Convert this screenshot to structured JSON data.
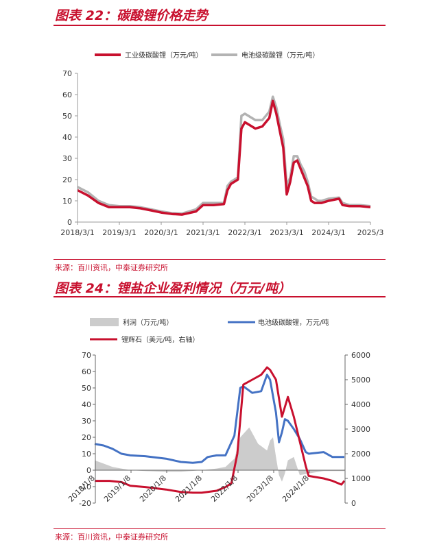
{
  "figures": [
    {
      "title": "图表 22：碳酸锂价格走势",
      "source": "来源：百川资讯，中泰证券研究所"
    },
    {
      "title": "图表 24：锂盐企业盈利情况（万元/吨）",
      "source": "来源：百川资讯，中泰证券研究所"
    }
  ],
  "colors": {
    "accent": "#c8102e",
    "series_red": "#c8102e",
    "series_gray": "#b3b3b3",
    "series_blue": "#4472c4",
    "area_gray": "#cccccc"
  },
  "chart_data": [
    {
      "type": "line",
      "title": "",
      "xlabel": "",
      "ylabel": "",
      "ylim": [
        0,
        70
      ],
      "yticks": [
        0,
        10,
        20,
        30,
        40,
        50,
        60,
        70
      ],
      "xlim": [
        "2018-03-01",
        "2025-03-01"
      ],
      "xticks": [
        "2018/3/1",
        "2019/3/1",
        "2020/3/1",
        "2021/3/1",
        "2022/3/1",
        "2023/3/1",
        "2024/3/1",
        "2025/3"
      ],
      "legend_position": "top",
      "series": [
        {
          "name": "工业级碳酸锂（万元/吨）",
          "color": "#c8102e",
          "x": [
            "2018-03",
            "2018-06",
            "2018-09",
            "2018-12",
            "2019-03",
            "2019-06",
            "2019-09",
            "2019-12",
            "2020-03",
            "2020-06",
            "2020-09",
            "2021-01",
            "2021-03",
            "2021-06",
            "2021-09",
            "2021-10",
            "2021-11",
            "2022-01",
            "2022-02",
            "2022-03",
            "2022-06",
            "2022-08",
            "2022-10",
            "2022-11",
            "2022-12",
            "2023-01",
            "2023-02",
            "2023-03",
            "2023-04",
            "2023-05",
            "2023-06",
            "2023-07",
            "2023-08",
            "2023-09",
            "2023-10",
            "2023-11",
            "2023-12",
            "2024-01",
            "2024-03",
            "2024-06",
            "2024-07",
            "2024-09",
            "2024-12",
            "2025-03"
          ],
          "y": [
            15,
            12.5,
            9,
            7,
            7,
            7,
            6.5,
            5.5,
            4.5,
            3.8,
            3.5,
            5,
            8,
            8,
            8.5,
            15,
            18,
            20,
            44,
            47,
            44,
            45,
            49,
            57,
            51,
            43,
            35,
            13,
            19,
            28,
            29,
            25,
            21,
            17,
            10,
            9,
            9,
            9,
            10,
            11,
            8,
            7.5,
            7.5,
            7
          ]
        },
        {
          "name": "电池级碳酸锂（万元/吨）",
          "color": "#b3b3b3",
          "x": [
            "2018-03",
            "2018-06",
            "2018-09",
            "2018-12",
            "2019-03",
            "2019-06",
            "2019-09",
            "2019-12",
            "2020-03",
            "2020-06",
            "2020-09",
            "2021-01",
            "2021-03",
            "2021-06",
            "2021-09",
            "2021-10",
            "2021-11",
            "2022-01",
            "2022-02",
            "2022-03",
            "2022-06",
            "2022-08",
            "2022-10",
            "2022-11",
            "2022-12",
            "2023-01",
            "2023-02",
            "2023-03",
            "2023-04",
            "2023-05",
            "2023-06",
            "2023-07",
            "2023-08",
            "2023-09",
            "2023-10",
            "2023-11",
            "2023-12",
            "2024-01",
            "2024-03",
            "2024-06",
            "2024-07",
            "2024-09",
            "2024-12",
            "2025-03"
          ],
          "y": [
            16.5,
            14,
            10,
            8,
            7.5,
            7.5,
            7,
            6,
            5,
            4.2,
            4,
            6,
            9,
            9,
            9,
            17,
            19,
            21,
            50,
            51,
            48,
            48,
            52,
            59,
            54,
            46,
            39,
            17,
            21,
            31,
            31,
            27,
            24,
            19,
            12,
            11,
            10,
            10,
            11,
            11.5,
            9,
            8,
            8,
            7.5
          ]
        }
      ]
    },
    {
      "type": "area+line",
      "title": "",
      "xlabel": "",
      "ylabel": "",
      "ylim": [
        -20,
        70
      ],
      "yticks": [
        -20,
        -10,
        0,
        10,
        20,
        30,
        40,
        50,
        60,
        70
      ],
      "y2lim": [
        0,
        6000
      ],
      "y2ticks": [
        0,
        1000,
        2000,
        3000,
        4000,
        5000,
        6000
      ],
      "xlim": [
        "2018-01-08",
        "2025-01-08"
      ],
      "xticks": [
        "2018/1/8",
        "2019/1/8",
        "2020/1/8",
        "2021/1/8",
        "2022/1/8",
        "2023/1/8",
        "2024/1/8"
      ],
      "legend_position": "top",
      "series": [
        {
          "name": "利润（万元/吨）",
          "kind": "area",
          "axis": "left",
          "color": "#cccccc",
          "x": [
            "2018-01",
            "2018-04",
            "2018-07",
            "2018-10",
            "2019-01",
            "2019-06",
            "2020-01",
            "2020-06",
            "2021-01",
            "2021-06",
            "2021-09",
            "2021-12",
            "2022-02",
            "2022-05",
            "2022-08",
            "2022-11",
            "2022-12",
            "2023-01",
            "2023-02",
            "2023-03",
            "2023-04",
            "2023-05",
            "2023-06",
            "2023-08",
            "2023-10",
            "2024-01",
            "2024-06",
            "2025-01"
          ],
          "y": [
            6,
            4,
            2,
            1,
            0,
            -0.5,
            -1,
            -1,
            0,
            1,
            2,
            7,
            20,
            26,
            16,
            12,
            18,
            20,
            8,
            -3,
            -7,
            -2,
            6,
            8,
            -3,
            -2,
            -0.5,
            -0.5
          ]
        },
        {
          "name": "电池级碳酸锂，万元/吨",
          "kind": "line",
          "axis": "left",
          "color": "#4472c4",
          "x": [
            "2018-01",
            "2018-04",
            "2018-07",
            "2018-10",
            "2019-01",
            "2019-06",
            "2020-01",
            "2020-06",
            "2020-10",
            "2021-01",
            "2021-03",
            "2021-06",
            "2021-09",
            "2021-12",
            "2022-02",
            "2022-03",
            "2022-06",
            "2022-09",
            "2022-11",
            "2022-12",
            "2023-01",
            "2023-02",
            "2023-03",
            "2023-04",
            "2023-05",
            "2023-06",
            "2023-08",
            "2023-10",
            "2023-12",
            "2024-01",
            "2024-06",
            "2024-09",
            "2025-01"
          ],
          "y": [
            16,
            15,
            13,
            10,
            9,
            8.5,
            7,
            5,
            4.5,
            5,
            8,
            9,
            9,
            21,
            50,
            51,
            47,
            48,
            58,
            55,
            45,
            35,
            17,
            23,
            31,
            30,
            25,
            19,
            11,
            10,
            11,
            8,
            8
          ]
        },
        {
          "name": "锂辉石（美元/吨，右轴）",
          "kind": "line",
          "axis": "right",
          "color": "#c8102e",
          "x": [
            "2018-01",
            "2018-06",
            "2018-10",
            "2019-01",
            "2019-06",
            "2020-01",
            "2020-06",
            "2020-10",
            "2021-01",
            "2021-03",
            "2021-06",
            "2021-09",
            "2021-11",
            "2022-01",
            "2022-03",
            "2022-06",
            "2022-09",
            "2022-11",
            "2022-12",
            "2023-02",
            "2023-04",
            "2023-06",
            "2023-08",
            "2023-10",
            "2023-12",
            "2024-01",
            "2024-06",
            "2024-09",
            "2024-12",
            "2025-01"
          ],
          "y": [
            900,
            900,
            850,
            700,
            650,
            550,
            450,
            420,
            420,
            450,
            500,
            650,
            800,
            2000,
            4800,
            5000,
            5200,
            5500,
            5400,
            5000,
            3500,
            4300,
            3500,
            2500,
            1500,
            1100,
            1000,
            900,
            750,
            900
          ]
        }
      ]
    }
  ]
}
